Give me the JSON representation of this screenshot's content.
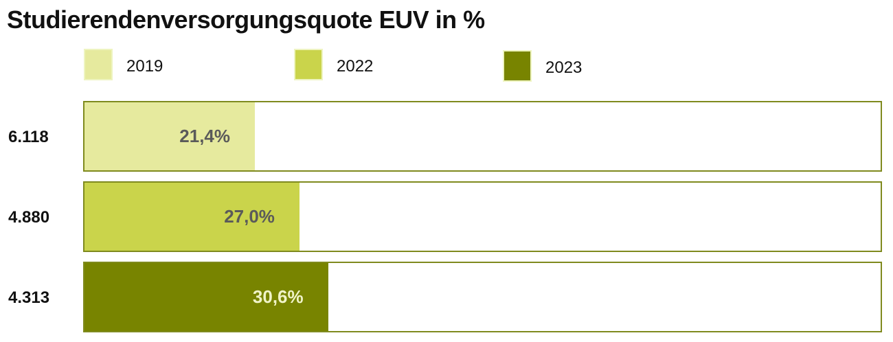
{
  "chart_data": {
    "type": "bar",
    "orientation": "horizontal",
    "title": "Studierendenversorgungsquote EUV in %",
    "categories": [
      "6.118",
      "4.880",
      "4.313"
    ],
    "series": [
      {
        "name": "2019",
        "value": 21.4,
        "label": "21,4%",
        "color": "#e6ea9e",
        "label_color": "#5a5a5a"
      },
      {
        "name": "2022",
        "value": 27.0,
        "label": "27,0%",
        "color": "#cad44b",
        "label_color": "#5a5a5a"
      },
      {
        "name": "2023",
        "value": 30.6,
        "label": "30,6%",
        "color": "#788400",
        "label_color": "#f0f3c8"
      }
    ],
    "xlim": [
      0,
      100
    ],
    "legend": "top",
    "grid": false
  }
}
